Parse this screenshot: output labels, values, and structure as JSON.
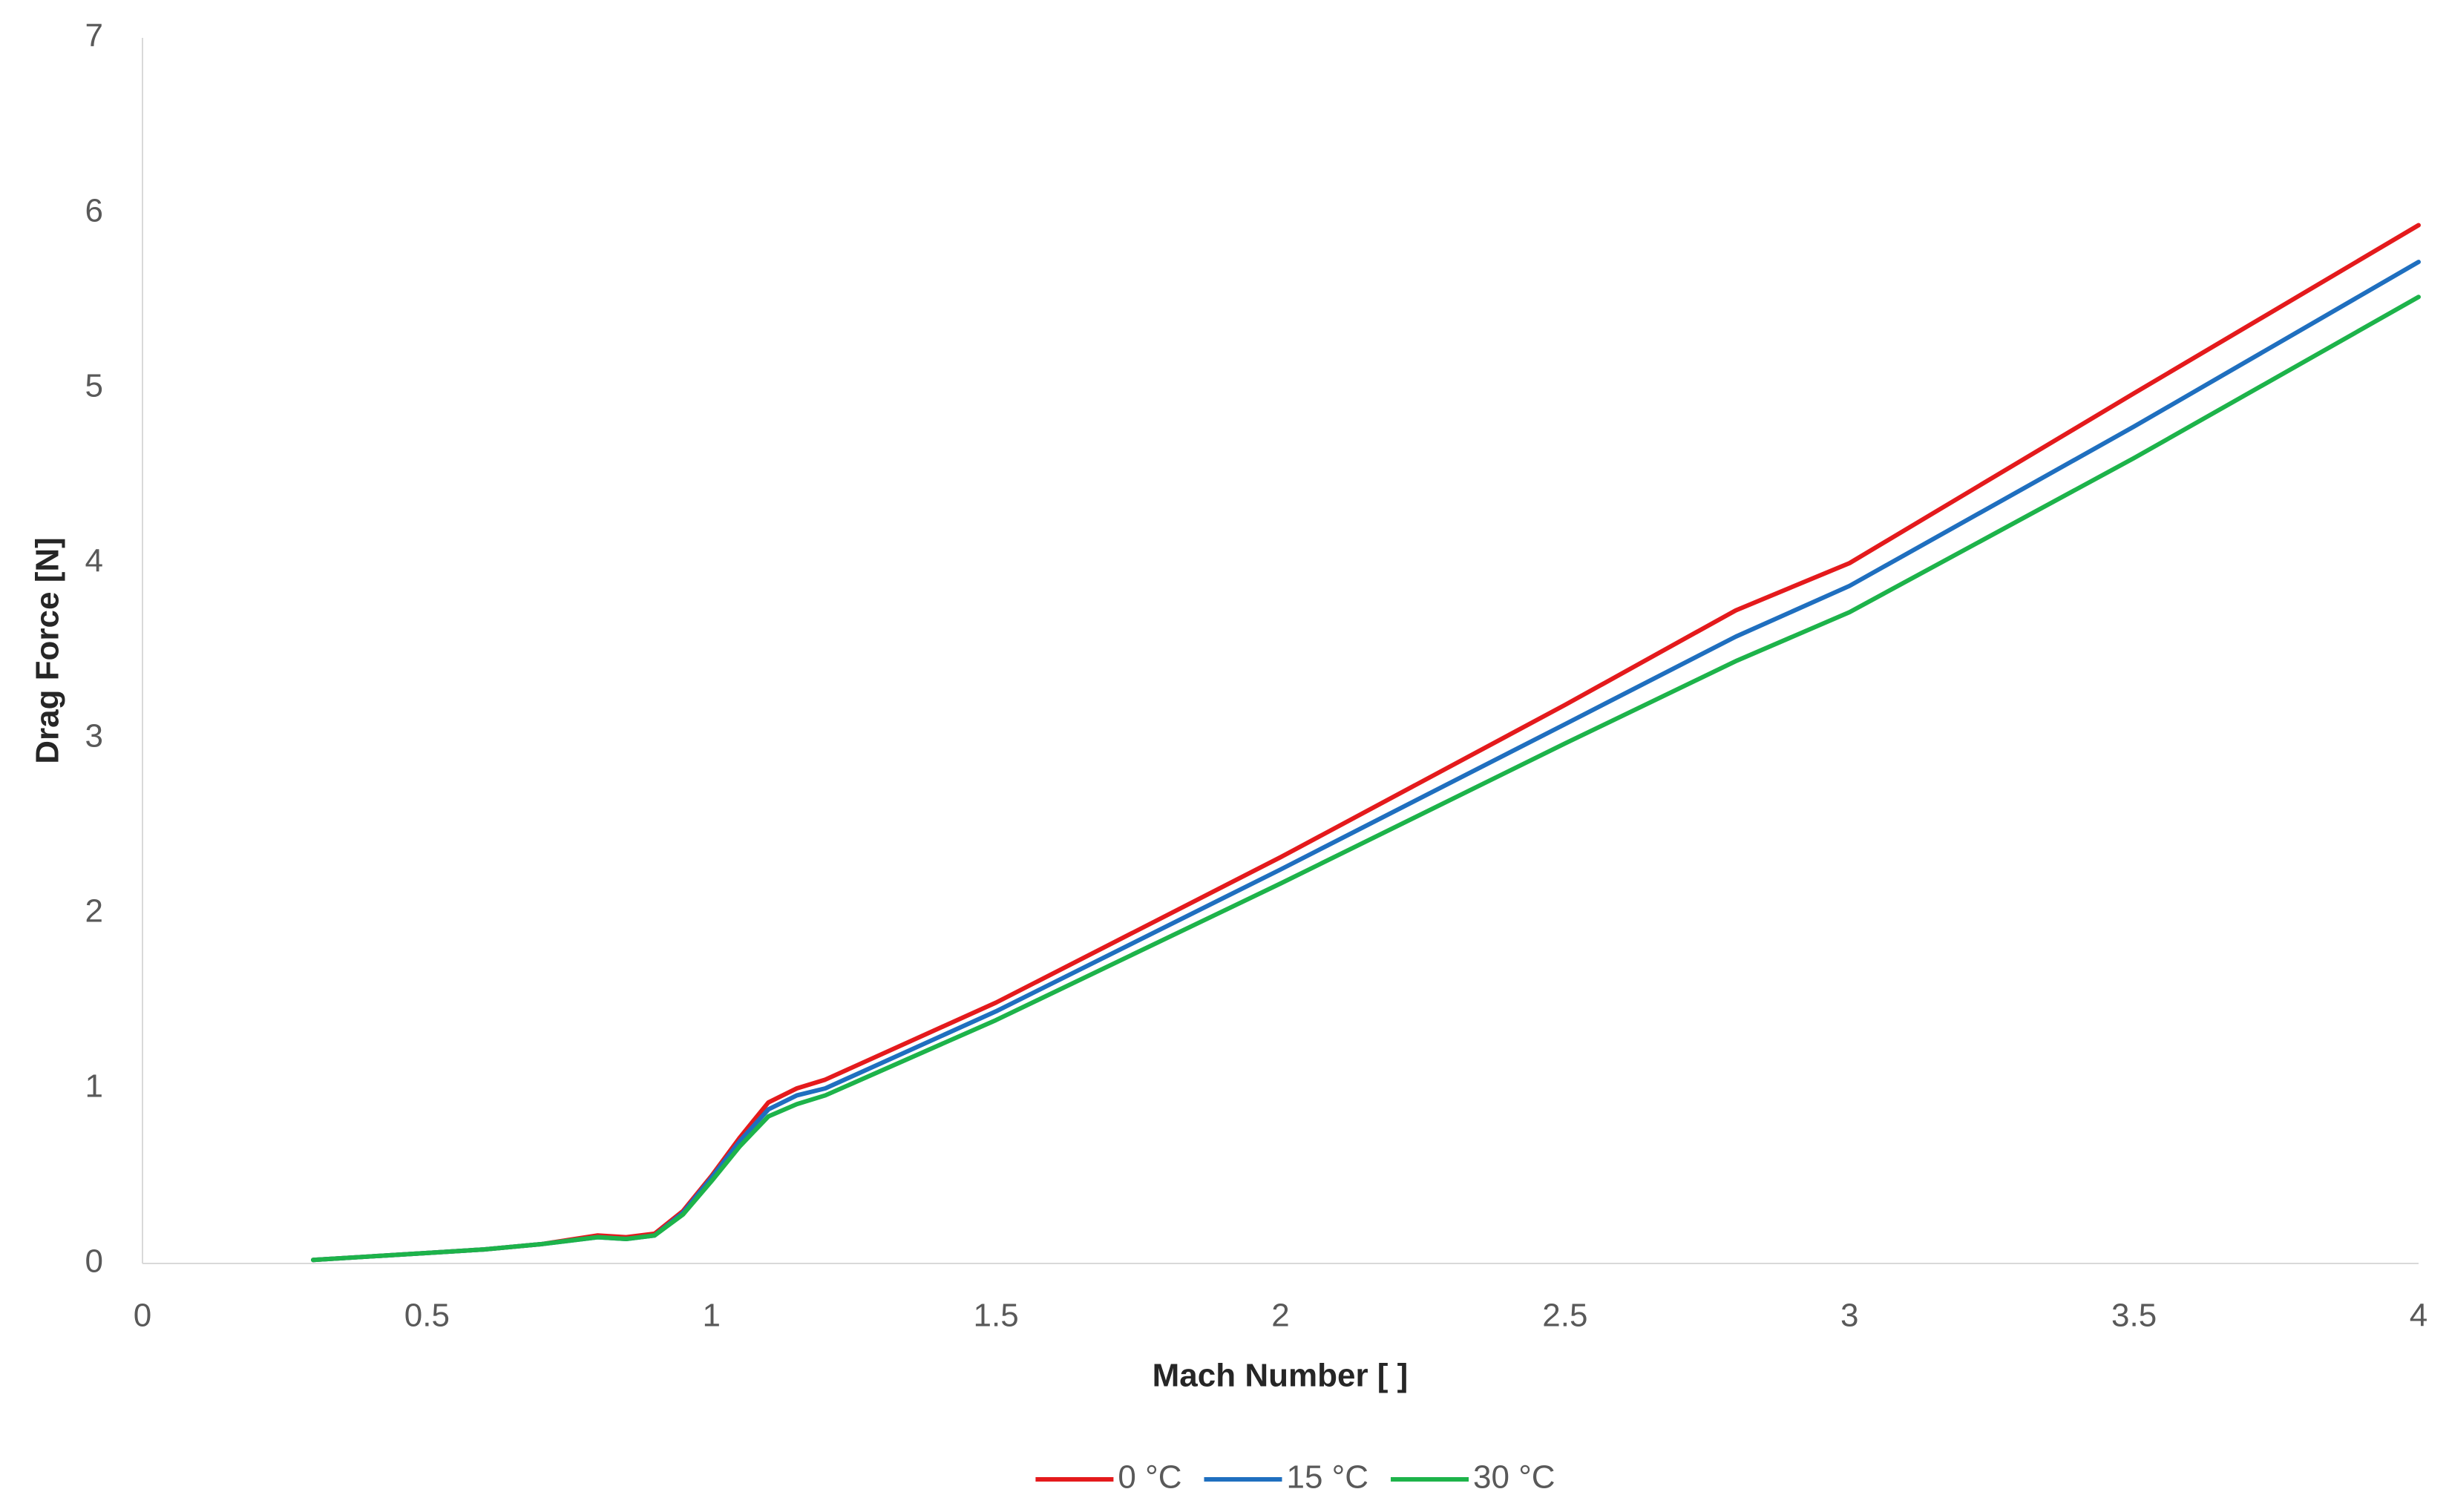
{
  "chart_data": {
    "type": "line",
    "x_label": "Mach Number [ ]",
    "y_label": "Drag Force [N]",
    "x": [
      0.3,
      0.4,
      0.5,
      0.6,
      0.7,
      0.8,
      0.85,
      0.9,
      0.95,
      1.0,
      1.05,
      1.1,
      1.15,
      1.2,
      1.5,
      2,
      2.5,
      2.8,
      3,
      3.5,
      4
    ],
    "series": [
      {
        "name": "0 °C",
        "color": "#e41a1c",
        "values": [
          0.02,
          0.04,
          0.06,
          0.08,
          0.11,
          0.16,
          0.15,
          0.17,
          0.3,
          0.5,
          0.72,
          0.92,
          1.0,
          1.05,
          1.49,
          2.32,
          3.19,
          3.73,
          4.0,
          4.97,
          5.93
        ]
      },
      {
        "name": "15 °C",
        "color": "#1f6fbf",
        "values": [
          0.02,
          0.04,
          0.06,
          0.08,
          0.11,
          0.15,
          0.14,
          0.16,
          0.29,
          0.49,
          0.7,
          0.88,
          0.96,
          1.0,
          1.44,
          2.25,
          3.08,
          3.58,
          3.87,
          4.78,
          5.72
        ]
      },
      {
        "name": "30 °C",
        "color": "#1db34a",
        "values": [
          0.02,
          0.04,
          0.06,
          0.08,
          0.11,
          0.15,
          0.14,
          0.16,
          0.28,
          0.47,
          0.67,
          0.84,
          0.91,
          0.96,
          1.39,
          2.17,
          2.97,
          3.44,
          3.72,
          4.6,
          5.52
        ]
      }
    ],
    "xlim": [
      0,
      4
    ],
    "xticks": [
      0,
      0.5,
      1,
      1.5,
      2,
      2.5,
      3,
      3.5,
      4
    ],
    "ylim": [
      0,
      7
    ],
    "yticks": [
      0,
      1,
      2,
      3,
      4,
      5,
      6,
      7
    ],
    "grid": false,
    "legend": "bottom"
  }
}
